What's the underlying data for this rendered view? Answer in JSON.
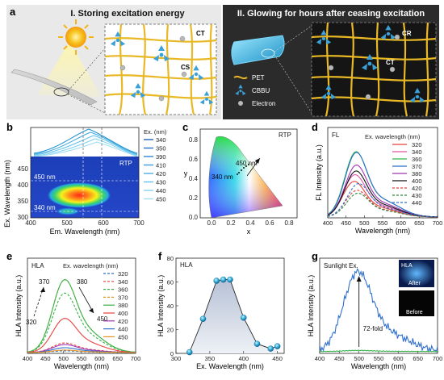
{
  "panel_a": {
    "letter": "a",
    "left_title": "I. Storing excitation energy",
    "right_title": "II. Glowing for hours after ceasing excitation",
    "left_labels": {
      "ct": "CT",
      "cs": "CS"
    },
    "right_labels": {
      "cr": "CR",
      "ct": "CT"
    },
    "legend": [
      "PET",
      "CBBU",
      "Electron"
    ],
    "colors": {
      "left_bg": "#e9e9e9",
      "right_bg": "#2b2b2b",
      "fiber": "#e8b825",
      "molecule": "#3aa0d8",
      "electron": "#b8b8b8"
    }
  },
  "panel_b": {
    "letter": "b",
    "mode": "RTP",
    "xlabel": "Em. Wavelength (nm)",
    "ylabel": "Ex. Wavelength (nm)",
    "xticks": [
      "400",
      "500",
      "600",
      "700"
    ],
    "yticks": [
      "300",
      "350",
      "400",
      "450"
    ],
    "legend_title": "Ex. (nm)",
    "legend": [
      "340",
      "350",
      "390",
      "410",
      "420",
      "430",
      "440",
      "450"
    ],
    "annotations": [
      "450 nm",
      "340 nm"
    ]
  },
  "panel_c": {
    "letter": "c",
    "mode": "RTP",
    "xlabel": "x",
    "ylabel": "y",
    "xticks": [
      "0.0",
      "0.2",
      "0.4",
      "0.6",
      "0.8"
    ],
    "yticks": [
      "0.0",
      "0.2",
      "0.4",
      "0.6",
      "0.8"
    ],
    "annotations": [
      "450 nm",
      "340 nm"
    ]
  },
  "chart_data": [
    {
      "panel": "d",
      "type": "line",
      "title": "FL",
      "legend_title": "Ex. wavelength (nm)",
      "xlabel": "Wavelength (nm)",
      "ylabel": "FL Intensity (a.u.)",
      "xlim": [
        400,
        700
      ],
      "xticks": [
        "400",
        "450",
        "500",
        "550",
        "600",
        "650",
        "700"
      ],
      "series": [
        {
          "name": "320",
          "color": "#e8413c",
          "dash": false,
          "peak": 470,
          "amp": 0.48
        },
        {
          "name": "340",
          "color": "#e055a8",
          "dash": false,
          "peak": 472,
          "amp": 0.57
        },
        {
          "name": "360",
          "color": "#35b34a",
          "dash": false,
          "peak": 475,
          "amp": 0.88
        },
        {
          "name": "370",
          "color": "#2f6fce",
          "dash": false,
          "peak": 476,
          "amp": 0.87
        },
        {
          "name": "380",
          "color": "#a235b5",
          "dash": false,
          "peak": 476,
          "amp": 0.7
        },
        {
          "name": "400",
          "color": "#111111",
          "dash": false,
          "peak": 475,
          "amp": 0.62
        },
        {
          "name": "420",
          "color": "#e8413c",
          "dash": true,
          "peak": 478,
          "amp": 0.36
        },
        {
          "name": "430",
          "color": "#2a8a3a",
          "dash": true,
          "peak": 480,
          "amp": 0.32
        },
        {
          "name": "440",
          "color": "#2f6fce",
          "dash": true,
          "peak": 482,
          "amp": 0.45
        }
      ]
    },
    {
      "panel": "e",
      "type": "line",
      "title": "HLA",
      "legend_title": "Ex. wavelength (nm)",
      "xlabel": "Wavelength (nm)",
      "ylabel": "HLA Intensity (a.u.)",
      "xlim": [
        400,
        700
      ],
      "xticks": [
        "400",
        "450",
        "500",
        "550",
        "600",
        "650",
        "700"
      ],
      "annotations": [
        "370",
        "380",
        "320",
        "450"
      ],
      "series": [
        {
          "name": "320",
          "color": "#2f6fce",
          "dash": true,
          "amp": 0.02
        },
        {
          "name": "340",
          "color": "#e8413c",
          "dash": true,
          "amp": 0.12
        },
        {
          "name": "360",
          "color": "#35b34a",
          "dash": true,
          "amp": 0.75
        },
        {
          "name": "370",
          "color": "#e8931e",
          "dash": true,
          "amp": 0.92
        },
        {
          "name": "380",
          "color": "#35b34a",
          "dash": false,
          "amp": 0.92
        },
        {
          "name": "400",
          "color": "#e8413c",
          "dash": false,
          "amp": 0.43
        },
        {
          "name": "420",
          "color": "#a235b5",
          "dash": false,
          "amp": 0.1
        },
        {
          "name": "440",
          "color": "#2f6fce",
          "dash": false,
          "amp": 0.06
        },
        {
          "name": "450",
          "color": "#e8931e",
          "dash": false,
          "amp": 0.03
        }
      ]
    },
    {
      "panel": "f",
      "type": "scatter",
      "title": "HLA",
      "xlabel": "Ex. Wavelength (nm)",
      "ylabel": "HLA Intensity (a.u.)",
      "xlim": [
        300,
        460
      ],
      "ylim": [
        0,
        80
      ],
      "xticks": [
        300,
        350,
        400,
        450
      ],
      "yticks": [
        0,
        20,
        40,
        60,
        80
      ],
      "x": [
        320,
        340,
        360,
        370,
        380,
        400,
        420,
        440,
        450
      ],
      "y": [
        1,
        29,
        61,
        62,
        62,
        30,
        8,
        4,
        6
      ]
    },
    {
      "panel": "g",
      "type": "line",
      "title": "Sunlight Ex.",
      "xlabel": "Wavelength (nm)",
      "ylabel": "HLA Intensity (a.u.)",
      "xlim": [
        400,
        700
      ],
      "xticks": [
        "400",
        "450",
        "500",
        "550",
        "600",
        "650",
        "700"
      ],
      "annotations": [
        "72-fold"
      ],
      "inset_labels": [
        "HLA",
        "After",
        "Before"
      ],
      "series": [
        {
          "name": "After",
          "color": "#2f6fce",
          "amp": 1.0
        },
        {
          "name": "Before",
          "color": "#35b34a",
          "amp": 0.014
        }
      ]
    }
  ],
  "panel_letters": {
    "d": "d",
    "e": "e",
    "f": "f",
    "g": "g"
  }
}
